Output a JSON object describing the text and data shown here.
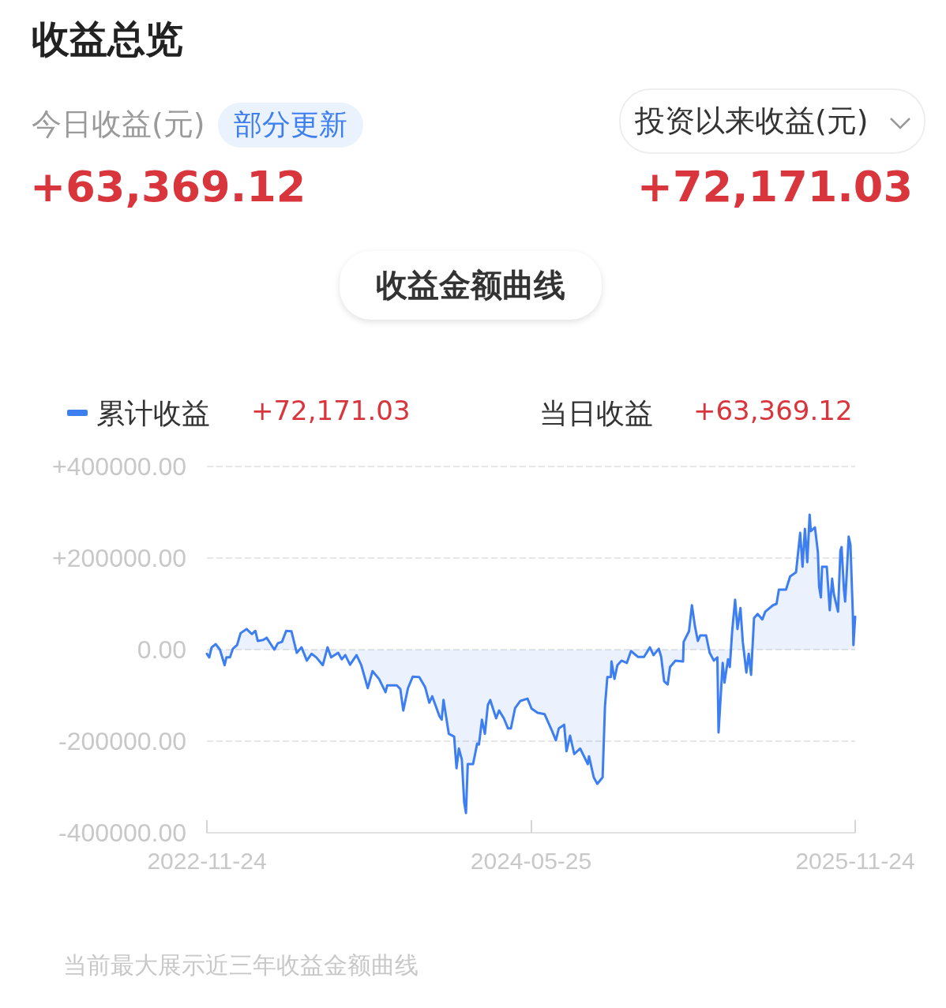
{
  "chart_data": {
    "type": "area",
    "title": "收益总览",
    "annotations": [
      "今日收益(元)",
      "部分更新",
      "+63,369.12",
      "投资以来收益(元)",
      "+72,171.03",
      "收益金额曲线",
      "+72,171.03",
      "当日收益",
      "+63,369.12",
      "当前最大展示近三年收益金额曲线"
    ],
    "x": [
      "2022-11-24",
      "2022-11-28",
      "2022-12-02",
      "2022-12-09",
      "2022-12-16",
      "2022-12-24",
      "2022-12-27",
      "2023-01-02",
      "2023-01-07",
      "2023-01-14",
      "2023-01-20",
      "2023-01-30",
      "2023-02-08",
      "2023-02-14",
      "2023-02-18",
      "2023-02-27",
      "2023-03-05",
      "2023-03-12",
      "2023-03-18",
      "2023-03-24",
      "2023-03-31",
      "2023-04-07",
      "2023-04-16",
      "2023-04-25",
      "2023-05-03",
      "2023-05-12",
      "2023-05-20",
      "2023-05-28",
      "2023-06-08",
      "2023-06-16",
      "2023-06-22",
      "2023-07-04",
      "2023-07-10",
      "2023-07-16",
      "2023-07-24",
      "2023-08-04",
      "2023-08-12",
      "2023-08-23",
      "2023-08-31",
      "2023-09-11",
      "2023-09-22",
      "2023-09-25",
      "2023-10-11",
      "2023-10-17",
      "2023-10-22",
      "2023-10-30",
      "2023-11-07",
      "2023-11-18",
      "2023-11-28",
      "2023-12-05",
      "2023-12-10",
      "2023-12-22",
      "2023-12-26",
      "2023-12-29",
      "2024-01-07",
      "2024-01-16",
      "2024-01-20",
      "2024-01-24",
      "2024-01-29",
      "2024-02-02",
      "2024-02-05",
      "2024-02-08",
      "2024-02-17",
      "2024-02-24",
      "2024-02-27",
      "2024-03-03",
      "2024-03-08",
      "2024-03-13",
      "2024-03-17",
      "2024-03-27",
      "2024-04-01",
      "2024-04-09",
      "2024-04-16",
      "2024-04-21",
      "2024-04-28",
      "2024-05-07",
      "2024-05-19",
      "2024-05-26",
      "2024-06-05",
      "2024-06-17",
      "2024-06-29",
      "2024-07-06",
      "2024-07-11",
      "2024-07-20",
      "2024-07-24",
      "2024-07-30",
      "2024-08-06",
      "2024-08-16",
      "2024-08-29",
      "2024-08-31",
      "2024-09-08",
      "2024-09-14",
      "2024-09-23",
      "2024-09-27",
      "2024-10-01",
      "2024-10-07",
      "2024-10-08",
      "2024-10-13",
      "2024-10-18",
      "2024-10-25",
      "2024-11-03",
      "2024-11-10",
      "2024-11-22",
      "2024-12-02",
      "2024-12-12",
      "2024-12-18",
      "2024-12-27",
      "2024-12-31",
      "2025-01-05",
      "2025-01-11",
      "2025-01-15",
      "2025-01-24",
      "2025-02-06",
      "2025-02-07",
      "2025-02-16",
      "2025-02-21",
      "2025-02-26",
      "2025-03-03",
      "2025-03-07",
      "2025-03-17",
      "2025-03-23",
      "2025-03-30",
      "2025-04-05",
      "2025-04-07",
      "2025-04-14",
      "2025-04-17",
      "2025-04-23",
      "2025-04-26",
      "2025-04-30",
      "2025-05-05",
      "2025-05-09",
      "2025-05-14",
      "2025-05-18",
      "2025-05-24",
      "2025-05-28",
      "2025-06-01",
      "2025-06-06",
      "2025-06-12",
      "2025-06-20",
      "2025-06-25",
      "2025-07-08",
      "2025-07-14",
      "2025-07-18",
      "2025-07-30",
      "2025-08-06",
      "2025-08-16",
      "2025-08-23",
      "2025-08-27",
      "2025-08-31",
      "2025-09-04",
      "2025-09-08",
      "2025-09-10",
      "2025-09-17",
      "2025-09-22",
      "2025-09-24",
      "2025-09-27",
      "2025-09-29",
      "2025-10-07",
      "2025-10-12",
      "2025-10-16",
      "2025-10-19",
      "2025-10-26",
      "2025-10-30",
      "2025-11-01",
      "2025-11-05",
      "2025-11-07",
      "2025-11-10",
      "2025-11-13",
      "2025-11-16",
      "2025-11-20",
      "2025-11-21",
      "2025-11-24"
    ],
    "series": [
      {
        "name": "累计收益",
        "color": "#3d7ef0",
        "values": [
          -9000,
          -17000,
          5000,
          12000,
          0,
          -34000,
          -17000,
          -17000,
          2000,
          10000,
          36000,
          45000,
          34000,
          41000,
          19000,
          21000,
          26000,
          12000,
          0,
          14000,
          17000,
          41000,
          40000,
          -7000,
          5000,
          -24000,
          -9000,
          -17000,
          -34000,
          5000,
          -17000,
          -7000,
          -21000,
          -12000,
          -33000,
          -12000,
          -34000,
          -84000,
          -47000,
          -64000,
          -93000,
          -78000,
          -78000,
          -86000,
          -133000,
          -84000,
          -59000,
          -60000,
          -82000,
          -116000,
          -102000,
          -145000,
          -153000,
          -110000,
          -184000,
          -190000,
          -259000,
          -216000,
          -240000,
          -334000,
          -357000,
          -250000,
          -250000,
          -205000,
          -207000,
          -153000,
          -184000,
          -121000,
          -110000,
          -150000,
          -133000,
          -150000,
          -172000,
          -172000,
          -128000,
          -112000,
          -107000,
          -129000,
          -138000,
          -141000,
          -176000,
          -198000,
          -172000,
          -164000,
          -222000,
          -188000,
          -228000,
          -216000,
          -250000,
          -233000,
          -279000,
          -293000,
          -279000,
          -124000,
          -60000,
          -60000,
          -26000,
          -64000,
          -34000,
          -24000,
          -29000,
          -3000,
          -16000,
          -16000,
          5000,
          -12000,
          2000,
          -16000,
          -69000,
          -76000,
          -38000,
          -24000,
          -26000,
          17000,
          40000,
          97000,
          52000,
          19000,
          31000,
          31000,
          -7000,
          -24000,
          -17000,
          -181000,
          -29000,
          -72000,
          -21000,
          -38000,
          40000,
          109000,
          45000,
          91000,
          17000,
          -50000,
          -9000,
          -55000,
          69000,
          78000,
          66000,
          83000,
          97000,
          100000,
          131000,
          131000,
          160000,
          169000,
          255000,
          181000,
          264000,
          191000,
          295000,
          259000,
          267000,
          212000,
          138000,
          114000,
          181000,
          181000,
          86000,
          155000,
          121000,
          83000,
          216000,
          224000,
          131000,
          105000,
          172000,
          247000,
          229000,
          79000,
          10000,
          72000
        ]
      }
    ],
    "xlim": [
      "2022-11-24",
      "2025-11-24"
    ],
    "xticks": [
      "2022-11-24",
      "2024-05-25",
      "2025-11-24"
    ],
    "ylim": [
      -400000,
      400000
    ],
    "yticks": [
      {
        "value": -400000,
        "label": "-400000.00"
      },
      {
        "value": -200000,
        "label": "-200000.00"
      },
      {
        "value": 0,
        "label": "0.00"
      },
      {
        "value": 200000,
        "label": "+200000.00"
      },
      {
        "value": 400000,
        "label": "+400000.00"
      }
    ],
    "grid": "y",
    "legend": "top left",
    "marker": "none",
    "line_style": "solid"
  }
}
